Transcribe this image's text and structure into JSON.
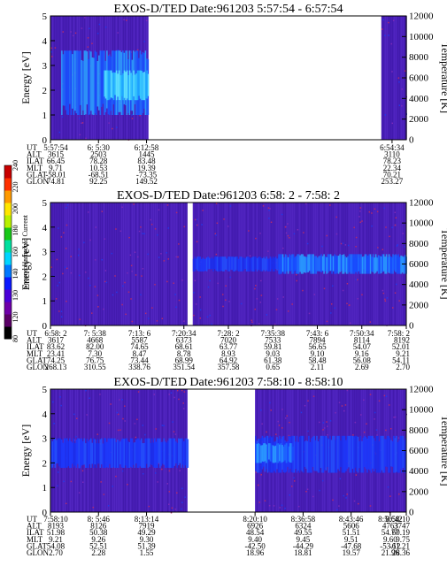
{
  "colorbar": {
    "label": "Second Harmonic Current",
    "ticks": [
      "80",
      "120",
      "130",
      "140",
      "160",
      "180",
      "200",
      "220",
      "240"
    ],
    "colors": [
      "#000000",
      "#5a0066",
      "#6e00a8",
      "#4a00d8",
      "#0a18ff",
      "#0078ff",
      "#00d4ff",
      "#00e0a0",
      "#18c818",
      "#b8f000",
      "#ffe600",
      "#ff9a00",
      "#ff3000",
      "#c80000"
    ]
  },
  "chart_data": [
    {
      "type": "heatmap",
      "title": "EXOS-D/TED    Date:961203   5:57:54 - 6:57:54",
      "ylabel": "Energy [eV]",
      "ylabel_right": "Temperature [K]",
      "ylim": [
        0,
        5
      ],
      "ylim_right": [
        0,
        12000
      ],
      "yticks": [
        "0",
        "1",
        "2",
        "3",
        "4",
        "5"
      ],
      "yticks_right": [
        "0",
        "2000",
        "4000",
        "6000",
        "8000",
        "10000",
        "12000"
      ],
      "data_spans": [
        [
          0,
          0.275
        ],
        [
          0.93,
          1
        ]
      ],
      "features": [
        {
          "span": [
            0.03,
            0.275
          ],
          "energy": [
            1.0,
            3.6
          ],
          "level": "high"
        },
        {
          "span": [
            0.15,
            0.275
          ],
          "energy": [
            1.6,
            2.8
          ],
          "level": "peak"
        }
      ],
      "orbit_labels": [
        "UT",
        "ALT",
        "ILAT",
        "MLT",
        "GLAT",
        "GLON"
      ],
      "orbit_columns": [
        {
          "values": [
            "5:57:54",
            "3615",
            "66.45",
            "9.71",
            "-58.01",
            "74.81"
          ]
        },
        {
          "values": [
            "6: 5:30",
            "2503",
            "78.28",
            "10.53",
            "-68.51",
            "92.25"
          ]
        },
        {
          "values": [
            "6:12:58",
            "1445",
            "83.48",
            "19.39",
            "-73.35",
            "149.52"
          ]
        },
        {
          "values": [
            "6:54:34",
            "3110",
            "78.23",
            "22.34",
            "70.21",
            "253.27"
          ]
        }
      ]
    },
    {
      "type": "heatmap",
      "title": "EXOS-D/TED    Date:961203   6:58: 2 - 7:58: 2",
      "ylabel": "Energy [eV]",
      "ylabel_right": "Temperature [K]",
      "ylim": [
        0,
        5
      ],
      "ylim_right": [
        0,
        12000
      ],
      "yticks": [
        "0",
        "1",
        "2",
        "3",
        "4",
        "5"
      ],
      "yticks_right": [
        "0",
        "2000",
        "4000",
        "6000",
        "8000",
        "10000",
        "12000"
      ],
      "data_spans": [
        [
          0,
          0.385
        ],
        [
          0.4,
          1
        ]
      ],
      "features": [
        {
          "span": [
            0.4,
            1
          ],
          "energy": [
            2.2,
            2.8
          ],
          "level": "mid"
        },
        {
          "span": [
            0.64,
            1
          ],
          "energy": [
            2.1,
            2.9
          ],
          "level": "high"
        }
      ],
      "orbit_labels": [
        "UT",
        "ALT",
        "ILAT",
        "MLT",
        "GLAT",
        "GLON"
      ],
      "orbit_columns": [
        {
          "values": [
            "6:58: 2",
            "3617",
            "83.62",
            "23.41",
            "74.25",
            "268.13"
          ]
        },
        {
          "values": [
            "7: 5:38",
            "4668",
            "82.00",
            "7.30",
            "76.75",
            "310.55"
          ]
        },
        {
          "values": [
            "7:13: 6",
            "5587",
            "74.65",
            "8.47",
            "73.44",
            "338.76"
          ]
        },
        {
          "values": [
            "7:20:34",
            "6373",
            "68.61",
            "8.78",
            "68.99",
            "351.54"
          ]
        },
        {
          "values": [
            "7:28: 2",
            "7020",
            "63.77",
            "8.93",
            "64.92",
            "357.58"
          ]
        },
        {
          "values": [
            "7:35:38",
            "7533",
            "59.81",
            "9.03",
            "61.38",
            "0.65"
          ]
        },
        {
          "values": [
            "7:43: 6",
            "7894",
            "56.65",
            "9.10",
            "58.48",
            "2.11"
          ]
        },
        {
          "values": [
            "7:50:34",
            "8114",
            "54.07",
            "9.16",
            "56.08",
            "2.69"
          ]
        },
        {
          "values": [
            "7:58: 2",
            "8192",
            "52.01",
            "9.21",
            "54.11",
            "2.70"
          ]
        }
      ]
    },
    {
      "type": "heatmap",
      "title": "EXOS-D/TED    Date:961203   7:58:10 - 8:58:10",
      "ylabel": "Energy [eV]",
      "ylabel_right": "Temperature [K]",
      "ylim": [
        0,
        5
      ],
      "ylim_right": [
        0,
        12000
      ],
      "yticks": [
        "0",
        "1",
        "2",
        "3",
        "4",
        "5"
      ],
      "yticks_right": [
        "0",
        "2000",
        "4000",
        "6000",
        "8000",
        "10000",
        "12000"
      ],
      "data_spans": [
        [
          0,
          0.385
        ],
        [
          0.575,
          1
        ]
      ],
      "features": [
        {
          "span": [
            0,
            0.385
          ],
          "energy": [
            1.8,
            3.0
          ],
          "level": "mid"
        },
        {
          "span": [
            0.575,
            1
          ],
          "energy": [
            1.6,
            3.1
          ],
          "level": "mid"
        },
        {
          "span": [
            0.575,
            0.68
          ],
          "energy": [
            2.0,
            2.8
          ],
          "level": "high"
        }
      ],
      "orbit_labels": [
        "UT",
        "ALT",
        "ILAT",
        "MLT",
        "GLAT",
        "GLON"
      ],
      "orbit_columns": [
        {
          "values": [
            "7:58:10",
            "8193",
            "51.98",
            "9.21",
            "54.08",
            "2.70"
          ]
        },
        {
          "values": [
            "8: 5:46",
            "8126",
            "50.38",
            "9.26",
            "52.51",
            "2.28"
          ]
        },
        {
          "values": [
            "8:13:14",
            "7919",
            "49.29",
            "9.30",
            "51.39",
            "1.55"
          ]
        },
        {
          "values": [
            "8:20:10",
            "6926",
            "48.54",
            "9.40",
            "-42.50",
            "18.96"
          ]
        },
        {
          "values": [
            "8:36:58",
            "6324",
            "49.55",
            "9.45",
            "-44.29",
            "18.81"
          ]
        },
        {
          "values": [
            "8:43:46",
            "5606",
            "51.51",
            "9.51",
            "-47.68",
            "19.57"
          ]
        },
        {
          "values": [
            "8:50:42",
            "4763",
            "54.77",
            "9.60",
            "-53.12",
            "21.96"
          ]
        },
        {
          "values": [
            "8:58:10",
            "3747",
            "60.19",
            "9.75",
            "-61.21",
            "28.36"
          ]
        }
      ]
    }
  ]
}
